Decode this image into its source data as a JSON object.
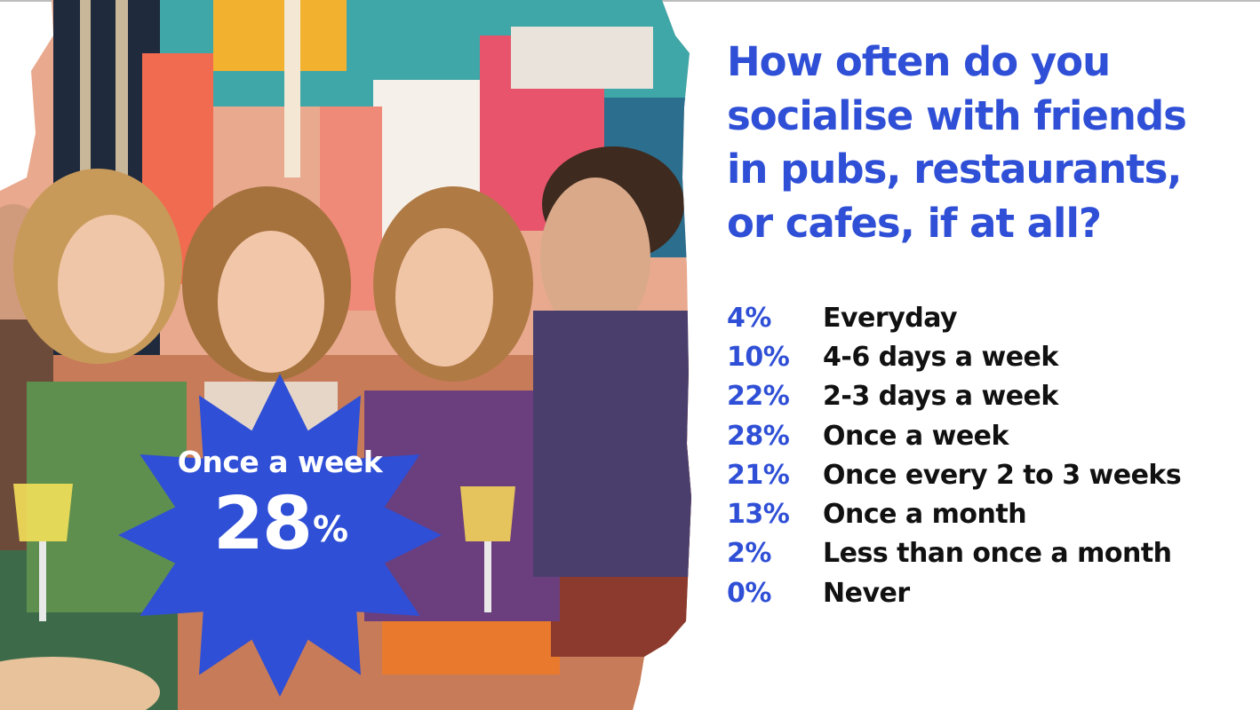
{
  "question": "How often do you socialise with friends in pubs, restaurants, or cafes, if at all?",
  "highlight": {
    "label": "Once a week",
    "value": "28",
    "unit": "%"
  },
  "colors": {
    "accent": "#2f4fd6",
    "text": "#111111"
  },
  "chart_data": {
    "type": "table",
    "title": "How often do you socialise with friends in pubs, restaurants, or cafes, if at all?",
    "unit": "%",
    "categories": [
      "Everyday",
      "4-6 days a week",
      "2-3 days a week",
      "Once a week",
      "Once every 2 to 3 weeks",
      "Once a month",
      "Less than once a month",
      "Never"
    ],
    "values": [
      4,
      10,
      22,
      28,
      21,
      13,
      2,
      0
    ],
    "rows": [
      {
        "pct": "4%",
        "label": "Everyday"
      },
      {
        "pct": "10%",
        "label": "4-6 days a week"
      },
      {
        "pct": "22%",
        "label": "2-3 days a week"
      },
      {
        "pct": "28%",
        "label": "Once a week"
      },
      {
        "pct": "21%",
        "label": "Once every 2 to 3 weeks"
      },
      {
        "pct": "13%",
        "label": "Once a month"
      },
      {
        "pct": "2%",
        "label": "Less than once a month"
      },
      {
        "pct": "0%",
        "label": "Never"
      }
    ]
  }
}
